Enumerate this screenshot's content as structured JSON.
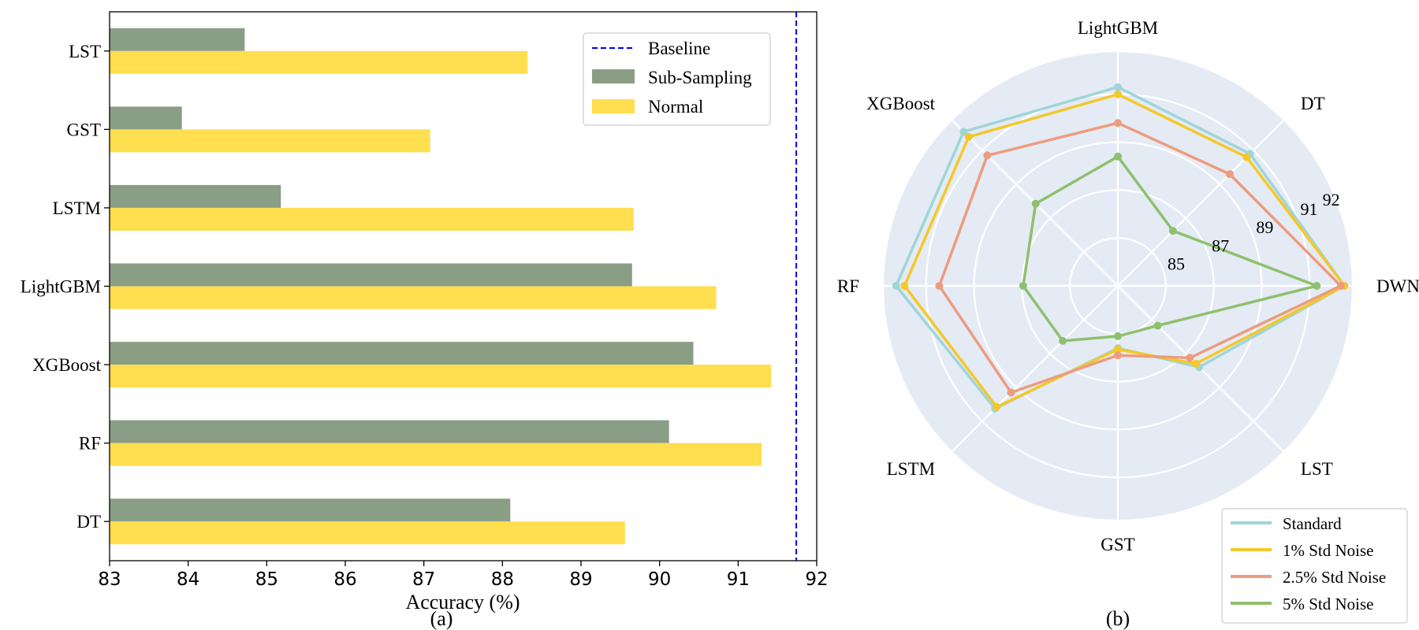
{
  "chart_data": [
    {
      "type": "bar",
      "orientation": "horizontal",
      "panel_label": "(a)",
      "xlabel": "Accuracy (%)",
      "xlim": [
        83,
        92
      ],
      "xticks": [
        "83",
        "84",
        "85",
        "86",
        "87",
        "88",
        "89",
        "90",
        "91",
        "92"
      ],
      "categories": [
        "LST",
        "GST",
        "LSTM",
        "LightGBM",
        "XGBoost",
        "RF",
        "DT"
      ],
      "series": [
        {
          "name": "Sub-Sampling",
          "color": "#8a9e86",
          "values": [
            84.72,
            83.92,
            85.18,
            89.65,
            90.43,
            90.12,
            88.1
          ]
        },
        {
          "name": "Normal",
          "color": "#ffde4f",
          "values": [
            88.32,
            87.08,
            89.67,
            90.72,
            91.42,
            91.3,
            89.56
          ]
        }
      ],
      "baseline": {
        "name": "Baseline",
        "value": 91.74,
        "color": "#0000ee",
        "style": "dashed"
      },
      "legend": {
        "position": "top-right",
        "entries": [
          "Baseline",
          "Sub-Sampling",
          "Normal"
        ]
      }
    },
    {
      "type": "radar",
      "panel_label": "(b)",
      "axes": [
        "DWN",
        "DT",
        "LightGBM",
        "XGBoost",
        "RF",
        "LSTM",
        "GST",
        "LST"
      ],
      "rrange": [
        83,
        92.8
      ],
      "rticks": [
        "85",
        "87",
        "89",
        "91",
        "92"
      ],
      "background": "#e5ebf5",
      "series": [
        {
          "name": "Standard",
          "color": "#9fd5d9",
          "values": [
            92.45,
            90.8,
            91.3,
            92.1,
            92.25,
            90.25,
            85.6,
            87.8
          ]
        },
        {
          "name": "1% Std Noise",
          "color": "#f4c82b",
          "values": [
            92.45,
            90.6,
            91.0,
            91.8,
            91.9,
            90.15,
            85.65,
            87.6
          ]
        },
        {
          "name": "2.5% Std Noise",
          "color": "#ec9c7f",
          "values": [
            92.3,
            89.6,
            89.8,
            90.7,
            90.45,
            89.3,
            85.9,
            87.25
          ]
        },
        {
          "name": "5% Std Noise",
          "color": "#8fc06e",
          "values": [
            91.3,
            86.25,
            88.4,
            87.85,
            86.95,
            86.25,
            85.1,
            85.35
          ]
        }
      ],
      "legend": {
        "position": "bottom-right",
        "entries": [
          "Standard",
          "1% Std Noise",
          "2.5% Std Noise",
          "5% Std Noise"
        ]
      }
    }
  ]
}
